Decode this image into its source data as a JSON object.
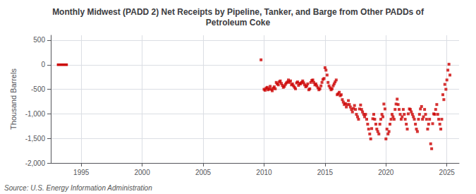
{
  "chart_data": {
    "type": "scatter",
    "title": "Monthly Midwest (PADD 2) Net Receipts by Pipeline, Tanker, and Barge from Other PADDs of\nPetroleum Coke",
    "ylabel": "Thousand Barrels",
    "source": "Source: U.S. Energy Information Administration",
    "grid": true,
    "xlim": [
      1992.5,
      2026
    ],
    "ylim": [
      -2000,
      600
    ],
    "xticks": [
      1995,
      2000,
      2005,
      2010,
      2015,
      2020,
      2025
    ],
    "yticks": [
      500,
      0,
      -500,
      {
        "value": -1000,
        "label": "-1,000"
      },
      {
        "value": -1500,
        "label": "-1,500"
      },
      {
        "value": -2000,
        "label": "-2,000"
      }
    ],
    "series": [
      {
        "type": "line",
        "color": "#cc0000",
        "x": [
          1993.0,
          1993.9
        ],
        "values": [
          0,
          0
        ]
      },
      {
        "type": "scatter",
        "color": "#cc0000",
        "marker": "square",
        "x": [
          2009.75,
          2010.0,
          2010.08,
          2010.17,
          2010.25,
          2010.33,
          2010.42,
          2010.5,
          2010.58,
          2010.67,
          2010.75,
          2010.83,
          2010.92,
          2011.0,
          2011.08,
          2011.17,
          2011.25,
          2011.33,
          2011.42,
          2011.5,
          2011.58,
          2011.67,
          2011.75,
          2011.83,
          2011.92,
          2012.0,
          2012.08,
          2012.17,
          2012.25,
          2012.33,
          2012.42,
          2012.5,
          2012.58,
          2012.67,
          2012.75,
          2012.83,
          2012.92,
          2013.0,
          2013.08,
          2013.17,
          2013.25,
          2013.33,
          2013.42,
          2013.5,
          2013.58,
          2013.67,
          2013.75,
          2013.83,
          2013.92,
          2014.0,
          2014.08,
          2014.17,
          2014.25,
          2014.33,
          2014.42,
          2014.5,
          2014.58,
          2014.67,
          2014.75,
          2014.83,
          2014.92,
          2015.0,
          2015.08,
          2015.17,
          2015.25,
          2015.33,
          2015.42,
          2015.5,
          2015.58,
          2015.67,
          2015.75,
          2015.83,
          2015.92,
          2016.0,
          2016.08,
          2016.17,
          2016.25,
          2016.33,
          2016.42,
          2016.5,
          2016.58,
          2016.67,
          2016.75,
          2016.83,
          2016.92,
          2017.0,
          2017.08,
          2017.17,
          2017.25,
          2017.33,
          2017.42,
          2017.5,
          2017.58,
          2017.67,
          2017.75,
          2017.83,
          2017.92,
          2018.0,
          2018.08,
          2018.17,
          2018.25,
          2018.33,
          2018.42,
          2018.5,
          2018.58,
          2018.67,
          2018.75,
          2018.83,
          2018.92,
          2019.0,
          2019.08,
          2019.17,
          2019.25,
          2019.33,
          2019.42,
          2019.5,
          2019.58,
          2019.67,
          2019.75,
          2019.83,
          2019.92,
          2020.0,
          2020.08,
          2020.17,
          2020.25,
          2020.33,
          2020.42,
          2020.5,
          2020.58,
          2020.67,
          2020.75,
          2020.83,
          2020.92,
          2021.0,
          2021.08,
          2021.17,
          2021.25,
          2021.33,
          2021.42,
          2021.5,
          2021.58,
          2021.67,
          2021.75,
          2021.83,
          2021.92,
          2022.0,
          2022.08,
          2022.17,
          2022.25,
          2022.33,
          2022.42,
          2022.5,
          2022.58,
          2022.67,
          2022.75,
          2022.83,
          2022.92,
          2023.0,
          2023.08,
          2023.17,
          2023.25,
          2023.33,
          2023.42,
          2023.5,
          2023.58,
          2023.67,
          2023.75,
          2023.83,
          2023.92,
          2024.0,
          2024.08,
          2024.17,
          2024.25,
          2024.33,
          2024.42,
          2024.5,
          2024.58,
          2024.67,
          2024.75,
          2024.83,
          2024.92,
          2025.0,
          2025.08,
          2025.17,
          2025.25
        ],
        "values": [
          100,
          -500,
          -520,
          -480,
          -460,
          -510,
          -490,
          -440,
          -500,
          -530,
          -480,
          -450,
          -490,
          -360,
          -390,
          -410,
          -350,
          -330,
          -380,
          -420,
          -460,
          -440,
          -400,
          -370,
          -350,
          -310,
          -360,
          -330,
          -410,
          -390,
          -430,
          -460,
          -490,
          -370,
          -350,
          -420,
          -380,
          -390,
          -360,
          -330,
          -370,
          -410,
          -450,
          -430,
          -390,
          -510,
          -490,
          -360,
          -320,
          -310,
          -360,
          -410,
          -390,
          -430,
          -470,
          -510,
          -490,
          -430,
          -360,
          -300,
          -280,
          -60,
          -110,
          -210,
          -360,
          -430,
          -470,
          -510,
          -490,
          -430,
          -390,
          -350,
          -310,
          -610,
          -590,
          -560,
          -630,
          -610,
          -710,
          -760,
          -810,
          -790,
          -860,
          -810,
          -730,
          -810,
          -860,
          -910,
          -960,
          -890,
          -830,
          -910,
          -1010,
          -1060,
          -1110,
          -900,
          -820,
          -910,
          -960,
          -1010,
          -1060,
          -1010,
          -1110,
          -1210,
          -1310,
          -1410,
          -1510,
          -1300,
          -1100,
          -1010,
          -1110,
          -1210,
          -1310,
          -1360,
          -1410,
          -1210,
          -1110,
          -1010,
          -1060,
          -800,
          -900,
          -1510,
          -1310,
          -1410,
          -1360,
          -1210,
          -1110,
          -1010,
          -1060,
          -1110,
          -910,
          -800,
          -700,
          -810,
          -910,
          -1010,
          -1110,
          -1060,
          -910,
          -1010,
          -1110,
          -1210,
          -1310,
          -1000,
          -900,
          -910,
          -960,
          -1010,
          -1060,
          -1110,
          -1210,
          -1310,
          -1360,
          -1110,
          -1010,
          -900,
          -850,
          -1110,
          -1060,
          -910,
          -1010,
          -1110,
          -1310,
          -1210,
          -1110,
          -1610,
          -1710,
          -1200,
          -1000,
          -1010,
          -910,
          -810,
          -1010,
          -1110,
          -1210,
          -1310,
          -1110,
          -610,
          -710,
          -400,
          -500,
          -310,
          -110,
          10,
          -210
        ]
      }
    ]
  }
}
